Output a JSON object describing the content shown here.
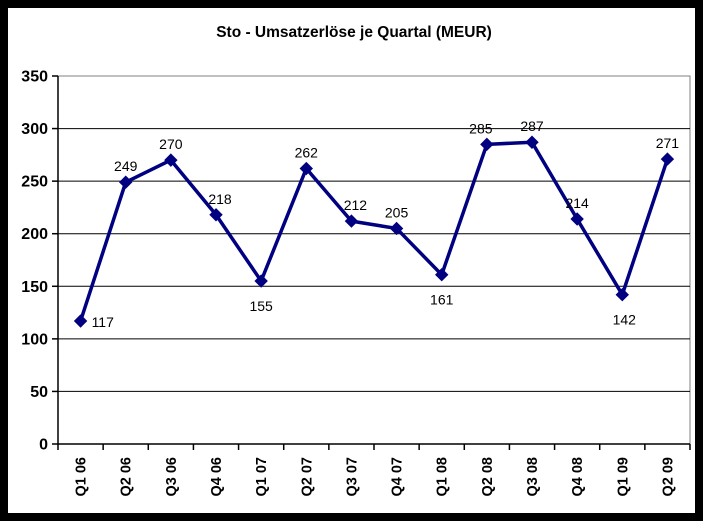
{
  "chart_data": {
    "type": "line",
    "title": "Sto - Umsatzerlöse je Quartal (MEUR)",
    "categories": [
      "Q1 06",
      "Q2 06",
      "Q3 06",
      "Q4 06",
      "Q1 07",
      "Q2 07",
      "Q3 07",
      "Q4 07",
      "Q1 08",
      "Q2 08",
      "Q3 08",
      "Q4 08",
      "Q1 09",
      "Q2 09"
    ],
    "values": [
      117,
      249,
      270,
      218,
      155,
      262,
      212,
      205,
      161,
      285,
      287,
      214,
      142,
      271
    ],
    "data_labels": [
      117,
      249,
      270,
      218,
      155,
      262,
      212,
      205,
      161,
      285,
      287,
      214,
      142,
      271
    ],
    "label_placement": [
      "right",
      "above",
      "above",
      "above",
      "below",
      "above",
      "above",
      "above",
      "below",
      "above",
      "above",
      "above",
      "below",
      "above"
    ],
    "label_dx": [
      0,
      0,
      0,
      4,
      0,
      0,
      4,
      0,
      0,
      -6,
      0,
      0,
      2,
      0
    ],
    "xlabel": "",
    "ylabel": "",
    "ylim": [
      0,
      350
    ],
    "y_ticks": [
      0,
      50,
      100,
      150,
      200,
      250,
      300,
      350
    ],
    "grid": true,
    "legend": "none",
    "marker": "diamond"
  },
  "colors": {
    "series": "#000080",
    "gridline": "#000000",
    "axis": "#000000",
    "plot_border": "#808080",
    "frame": "#000000",
    "background": "#ffffff",
    "text": "#000000"
  }
}
